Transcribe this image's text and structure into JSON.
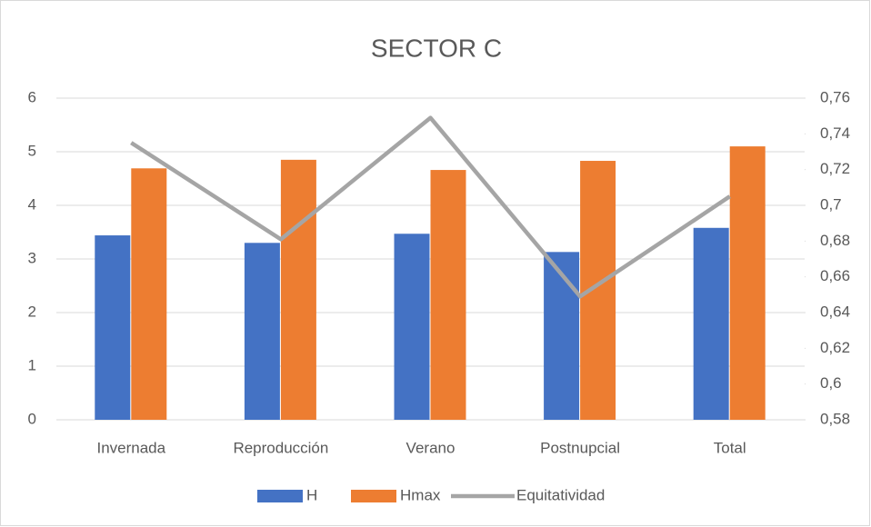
{
  "chart_data": {
    "type": "bar",
    "title": "SECTOR C",
    "categories": [
      "Invernada",
      "Reproducción",
      "Verano",
      "Postnupcial",
      "Total"
    ],
    "series": [
      {
        "name": "H",
        "color": "#4472c4",
        "values": [
          3.44,
          3.3,
          3.47,
          3.13,
          3.58
        ]
      },
      {
        "name": "Hmax",
        "color": "#ed7d31",
        "values": [
          4.69,
          4.85,
          4.66,
          4.83,
          5.1
        ]
      },
      {
        "name": "Equitatividad",
        "color": "#a5a5a5",
        "type": "line",
        "axis": "y2",
        "values": [
          0.735,
          0.681,
          0.749,
          0.649,
          0.705
        ]
      }
    ],
    "ylim": [
      0,
      6
    ],
    "yticks": [
      0,
      1,
      2,
      3,
      4,
      5,
      6
    ],
    "y2lim": [
      0.58,
      0.76
    ],
    "y2ticks": [
      {
        "value": 0.58,
        "label": "0,58"
      },
      {
        "value": 0.6,
        "label": "0,6"
      },
      {
        "value": 0.62,
        "label": "0,62"
      },
      {
        "value": 0.64,
        "label": "0,64"
      },
      {
        "value": 0.66,
        "label": "0,66"
      },
      {
        "value": 0.68,
        "label": "0,68"
      },
      {
        "value": 0.7,
        "label": "0,7"
      },
      {
        "value": 0.72,
        "label": "0,72"
      },
      {
        "value": 0.74,
        "label": "0,74"
      },
      {
        "value": 0.76,
        "label": "0,76"
      }
    ],
    "grid": true,
    "legend": "bottom"
  }
}
